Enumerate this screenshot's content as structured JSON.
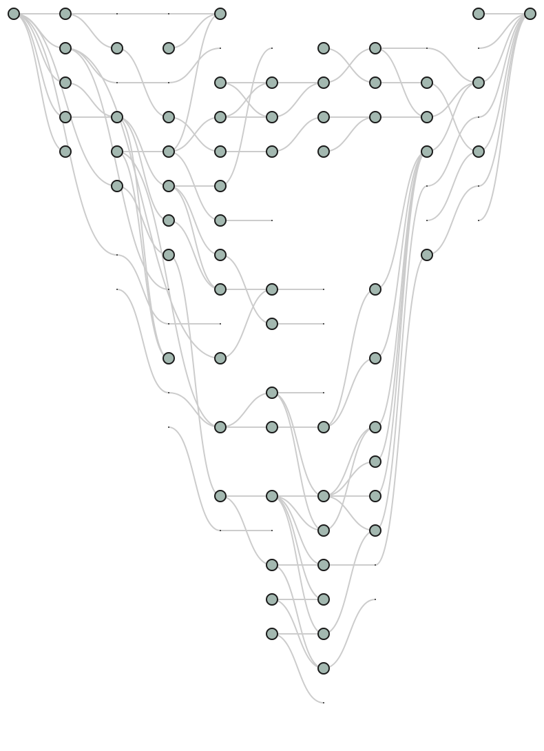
{
  "diagram": {
    "type": "layered-graph",
    "node_color": "#a3b8b0",
    "node_outline_color": "#1a1a1a",
    "edge_color": "#cccccc",
    "layers": 11,
    "nodes": [
      {
        "id": "a0",
        "layer": 0,
        "row": 0
      },
      {
        "id": "b0",
        "layer": 1,
        "row": 0
      },
      {
        "id": "b1",
        "layer": 1,
        "row": 1
      },
      {
        "id": "b2",
        "layer": 1,
        "row": 2
      },
      {
        "id": "b3",
        "layer": 1,
        "row": 3
      },
      {
        "id": "b4",
        "layer": 1,
        "row": 4
      },
      {
        "id": "c1",
        "layer": 2,
        "row": 1
      },
      {
        "id": "c3",
        "layer": 2,
        "row": 3
      },
      {
        "id": "c4",
        "layer": 2,
        "row": 4
      },
      {
        "id": "c5",
        "layer": 2,
        "row": 5
      },
      {
        "id": "d1",
        "layer": 3,
        "row": 1
      },
      {
        "id": "d3",
        "layer": 3,
        "row": 3
      },
      {
        "id": "d4",
        "layer": 3,
        "row": 4
      },
      {
        "id": "d5",
        "layer": 3,
        "row": 5
      },
      {
        "id": "d6",
        "layer": 3,
        "row": 6
      },
      {
        "id": "d7",
        "layer": 3,
        "row": 7
      },
      {
        "id": "d10",
        "layer": 3,
        "row": 10
      },
      {
        "id": "e0",
        "layer": 4,
        "row": 0
      },
      {
        "id": "e2",
        "layer": 4,
        "row": 2
      },
      {
        "id": "e3",
        "layer": 4,
        "row": 3
      },
      {
        "id": "e4",
        "layer": 4,
        "row": 4
      },
      {
        "id": "e5",
        "layer": 4,
        "row": 5
      },
      {
        "id": "e6",
        "layer": 4,
        "row": 6
      },
      {
        "id": "e7",
        "layer": 4,
        "row": 7
      },
      {
        "id": "e8",
        "layer": 4,
        "row": 8
      },
      {
        "id": "e10",
        "layer": 4,
        "row": 10
      },
      {
        "id": "e12",
        "layer": 4,
        "row": 12
      },
      {
        "id": "e14",
        "layer": 4,
        "row": 14
      },
      {
        "id": "f2",
        "layer": 5,
        "row": 2
      },
      {
        "id": "f3",
        "layer": 5,
        "row": 3
      },
      {
        "id": "f4",
        "layer": 5,
        "row": 4
      },
      {
        "id": "f8",
        "layer": 5,
        "row": 8
      },
      {
        "id": "f9",
        "layer": 5,
        "row": 9
      },
      {
        "id": "f11",
        "layer": 5,
        "row": 11
      },
      {
        "id": "f12",
        "layer": 5,
        "row": 12
      },
      {
        "id": "f14",
        "layer": 5,
        "row": 14
      },
      {
        "id": "f16",
        "layer": 5,
        "row": 16
      },
      {
        "id": "f17",
        "layer": 5,
        "row": 17
      },
      {
        "id": "f18",
        "layer": 5,
        "row": 18
      },
      {
        "id": "g1",
        "layer": 6,
        "row": 1
      },
      {
        "id": "g2",
        "layer": 6,
        "row": 2
      },
      {
        "id": "g3",
        "layer": 6,
        "row": 3
      },
      {
        "id": "g4",
        "layer": 6,
        "row": 4
      },
      {
        "id": "g12",
        "layer": 6,
        "row": 12
      },
      {
        "id": "g14",
        "layer": 6,
        "row": 14
      },
      {
        "id": "g15",
        "layer": 6,
        "row": 15
      },
      {
        "id": "g16",
        "layer": 6,
        "row": 16
      },
      {
        "id": "g17",
        "layer": 6,
        "row": 17
      },
      {
        "id": "g18",
        "layer": 6,
        "row": 18
      },
      {
        "id": "g19",
        "layer": 6,
        "row": 19
      },
      {
        "id": "h1",
        "layer": 7,
        "row": 1
      },
      {
        "id": "h2",
        "layer": 7,
        "row": 2
      },
      {
        "id": "h3",
        "layer": 7,
        "row": 3
      },
      {
        "id": "h8",
        "layer": 7,
        "row": 8
      },
      {
        "id": "h10",
        "layer": 7,
        "row": 10
      },
      {
        "id": "h12",
        "layer": 7,
        "row": 12
      },
      {
        "id": "h13",
        "layer": 7,
        "row": 13
      },
      {
        "id": "h14",
        "layer": 7,
        "row": 14
      },
      {
        "id": "h15",
        "layer": 7,
        "row": 15
      },
      {
        "id": "i2",
        "layer": 8,
        "row": 2
      },
      {
        "id": "i3",
        "layer": 8,
        "row": 3
      },
      {
        "id": "i4",
        "layer": 8,
        "row": 4
      },
      {
        "id": "i7",
        "layer": 8,
        "row": 7
      },
      {
        "id": "j0",
        "layer": 9,
        "row": 0
      },
      {
        "id": "j2",
        "layer": 9,
        "row": 2
      },
      {
        "id": "j4",
        "layer": 9,
        "row": 4
      },
      {
        "id": "k0",
        "layer": 10,
        "row": 0
      }
    ],
    "edges": [
      {
        "from": "a0",
        "to": "b0"
      },
      {
        "from": "a0",
        "to": "b1"
      },
      {
        "from": "a0",
        "to": "b2"
      },
      {
        "from": "a0",
        "to": "b3"
      },
      {
        "from": "a0",
        "to": "b4"
      },
      {
        "from": "a0",
        "to": "c5"
      },
      {
        "from": "a0",
        "to": "c7"
      },
      {
        "from": "b0",
        "to": "c0"
      },
      {
        "from": "b0",
        "to": "c1"
      },
      {
        "from": "b1",
        "to": "c2"
      },
      {
        "from": "b1",
        "to": "e10"
      },
      {
        "from": "b1",
        "to": "d8"
      },
      {
        "from": "b2",
        "to": "c3"
      },
      {
        "from": "b3",
        "to": "c3"
      },
      {
        "from": "c0",
        "to": "d0"
      },
      {
        "from": "c1",
        "to": "d3"
      },
      {
        "from": "c2",
        "to": "d2"
      },
      {
        "from": "c3",
        "to": "d5"
      },
      {
        "from": "c3",
        "to": "d6"
      },
      {
        "from": "c3",
        "to": "d10"
      },
      {
        "from": "c4",
        "to": "d4"
      },
      {
        "from": "c4",
        "to": "e12"
      },
      {
        "from": "c4",
        "to": "d10"
      },
      {
        "from": "c5",
        "to": "d7"
      },
      {
        "from": "c7",
        "to": "d9"
      },
      {
        "from": "c8",
        "to": "d11"
      },
      {
        "from": "d0",
        "to": "e0"
      },
      {
        "from": "d1",
        "to": "e0"
      },
      {
        "from": "d2",
        "to": "e1"
      },
      {
        "from": "d3",
        "to": "e4"
      },
      {
        "from": "d4",
        "to": "e0"
      },
      {
        "from": "d4",
        "to": "e3"
      },
      {
        "from": "d4",
        "to": "e6"
      },
      {
        "from": "d5",
        "to": "e5"
      },
      {
        "from": "d5",
        "to": "e7"
      },
      {
        "from": "d5",
        "to": "e8"
      },
      {
        "from": "d6",
        "to": "e8"
      },
      {
        "from": "d7",
        "to": "e14"
      },
      {
        "from": "d9",
        "to": "e9"
      },
      {
        "from": "d11",
        "to": "e12"
      },
      {
        "from": "d12",
        "to": "e15"
      },
      {
        "from": "e2",
        "to": "f2"
      },
      {
        "from": "e2",
        "to": "f3"
      },
      {
        "from": "e3",
        "to": "f3"
      },
      {
        "from": "e3",
        "to": "f2"
      },
      {
        "from": "e4",
        "to": "f4"
      },
      {
        "from": "e5",
        "to": "f1"
      },
      {
        "from": "e6",
        "to": "f6"
      },
      {
        "from": "e7",
        "to": "f9"
      },
      {
        "from": "e8",
        "to": "f8"
      },
      {
        "from": "e10",
        "to": "f8"
      },
      {
        "from": "e12",
        "to": "f12"
      },
      {
        "from": "e12",
        "to": "f11"
      },
      {
        "from": "e14",
        "to": "f14"
      },
      {
        "from": "e14",
        "to": "f16"
      },
      {
        "from": "e15",
        "to": "f15"
      },
      {
        "from": "f2",
        "to": "g2"
      },
      {
        "from": "f3",
        "to": "g2"
      },
      {
        "from": "f4",
        "to": "g3"
      },
      {
        "from": "f8",
        "to": "g8"
      },
      {
        "from": "f9",
        "to": "g9"
      },
      {
        "from": "f11",
        "to": "g11"
      },
      {
        "from": "f11",
        "to": "g14"
      },
      {
        "from": "f11",
        "to": "g15"
      },
      {
        "from": "f12",
        "to": "g12"
      },
      {
        "from": "f14",
        "to": "g14"
      },
      {
        "from": "f14",
        "to": "g15"
      },
      {
        "from": "f14",
        "to": "g16"
      },
      {
        "from": "f14",
        "to": "g17"
      },
      {
        "from": "f14",
        "to": "g18"
      },
      {
        "from": "f16",
        "to": "g16"
      },
      {
        "from": "f16",
        "to": "g19"
      },
      {
        "from": "f17",
        "to": "g17"
      },
      {
        "from": "f17",
        "to": "g19"
      },
      {
        "from": "f18",
        "to": "g18"
      },
      {
        "from": "f18",
        "to": "g20"
      },
      {
        "from": "g1",
        "to": "h2"
      },
      {
        "from": "g2",
        "to": "h1"
      },
      {
        "from": "g3",
        "to": "h3"
      },
      {
        "from": "g4",
        "to": "h3"
      },
      {
        "from": "g12",
        "to": "h10"
      },
      {
        "from": "g12",
        "to": "h8"
      },
      {
        "from": "g14",
        "to": "h14"
      },
      {
        "from": "g14",
        "to": "h15"
      },
      {
        "from": "g14",
        "to": "h13"
      },
      {
        "from": "g14",
        "to": "h12"
      },
      {
        "from": "g15",
        "to": "h12"
      },
      {
        "from": "g16",
        "to": "h16"
      },
      {
        "from": "g18",
        "to": "h15"
      },
      {
        "from": "g19",
        "to": "h17"
      },
      {
        "from": "h1",
        "to": "i3"
      },
      {
        "from": "h1",
        "to": "i1"
      },
      {
        "from": "h2",
        "to": "i2"
      },
      {
        "from": "h3",
        "to": "i3"
      },
      {
        "from": "h8",
        "to": "i4"
      },
      {
        "from": "h10",
        "to": "i4"
      },
      {
        "from": "h12",
        "to": "i4"
      },
      {
        "from": "h13",
        "to": "i4"
      },
      {
        "from": "h14",
        "to": "i4"
      },
      {
        "from": "h15",
        "to": "i5"
      },
      {
        "from": "h16",
        "to": "i7"
      },
      {
        "from": "i1",
        "to": "j2"
      },
      {
        "from": "i2",
        "to": "j4"
      },
      {
        "from": "i3",
        "to": "j2"
      },
      {
        "from": "i4",
        "to": "j2"
      },
      {
        "from": "i5",
        "to": "j3"
      },
      {
        "from": "i6",
        "to": "j4"
      },
      {
        "from": "i7",
        "to": "j5"
      },
      {
        "from": "j0",
        "to": "k0"
      },
      {
        "from": "j1",
        "to": "k0"
      },
      {
        "from": "j2",
        "to": "k0"
      },
      {
        "from": "j3",
        "to": "k0"
      },
      {
        "from": "j4",
        "to": "k0"
      },
      {
        "from": "j5",
        "to": "k0"
      },
      {
        "from": "j6",
        "to": "k0"
      }
    ]
  }
}
